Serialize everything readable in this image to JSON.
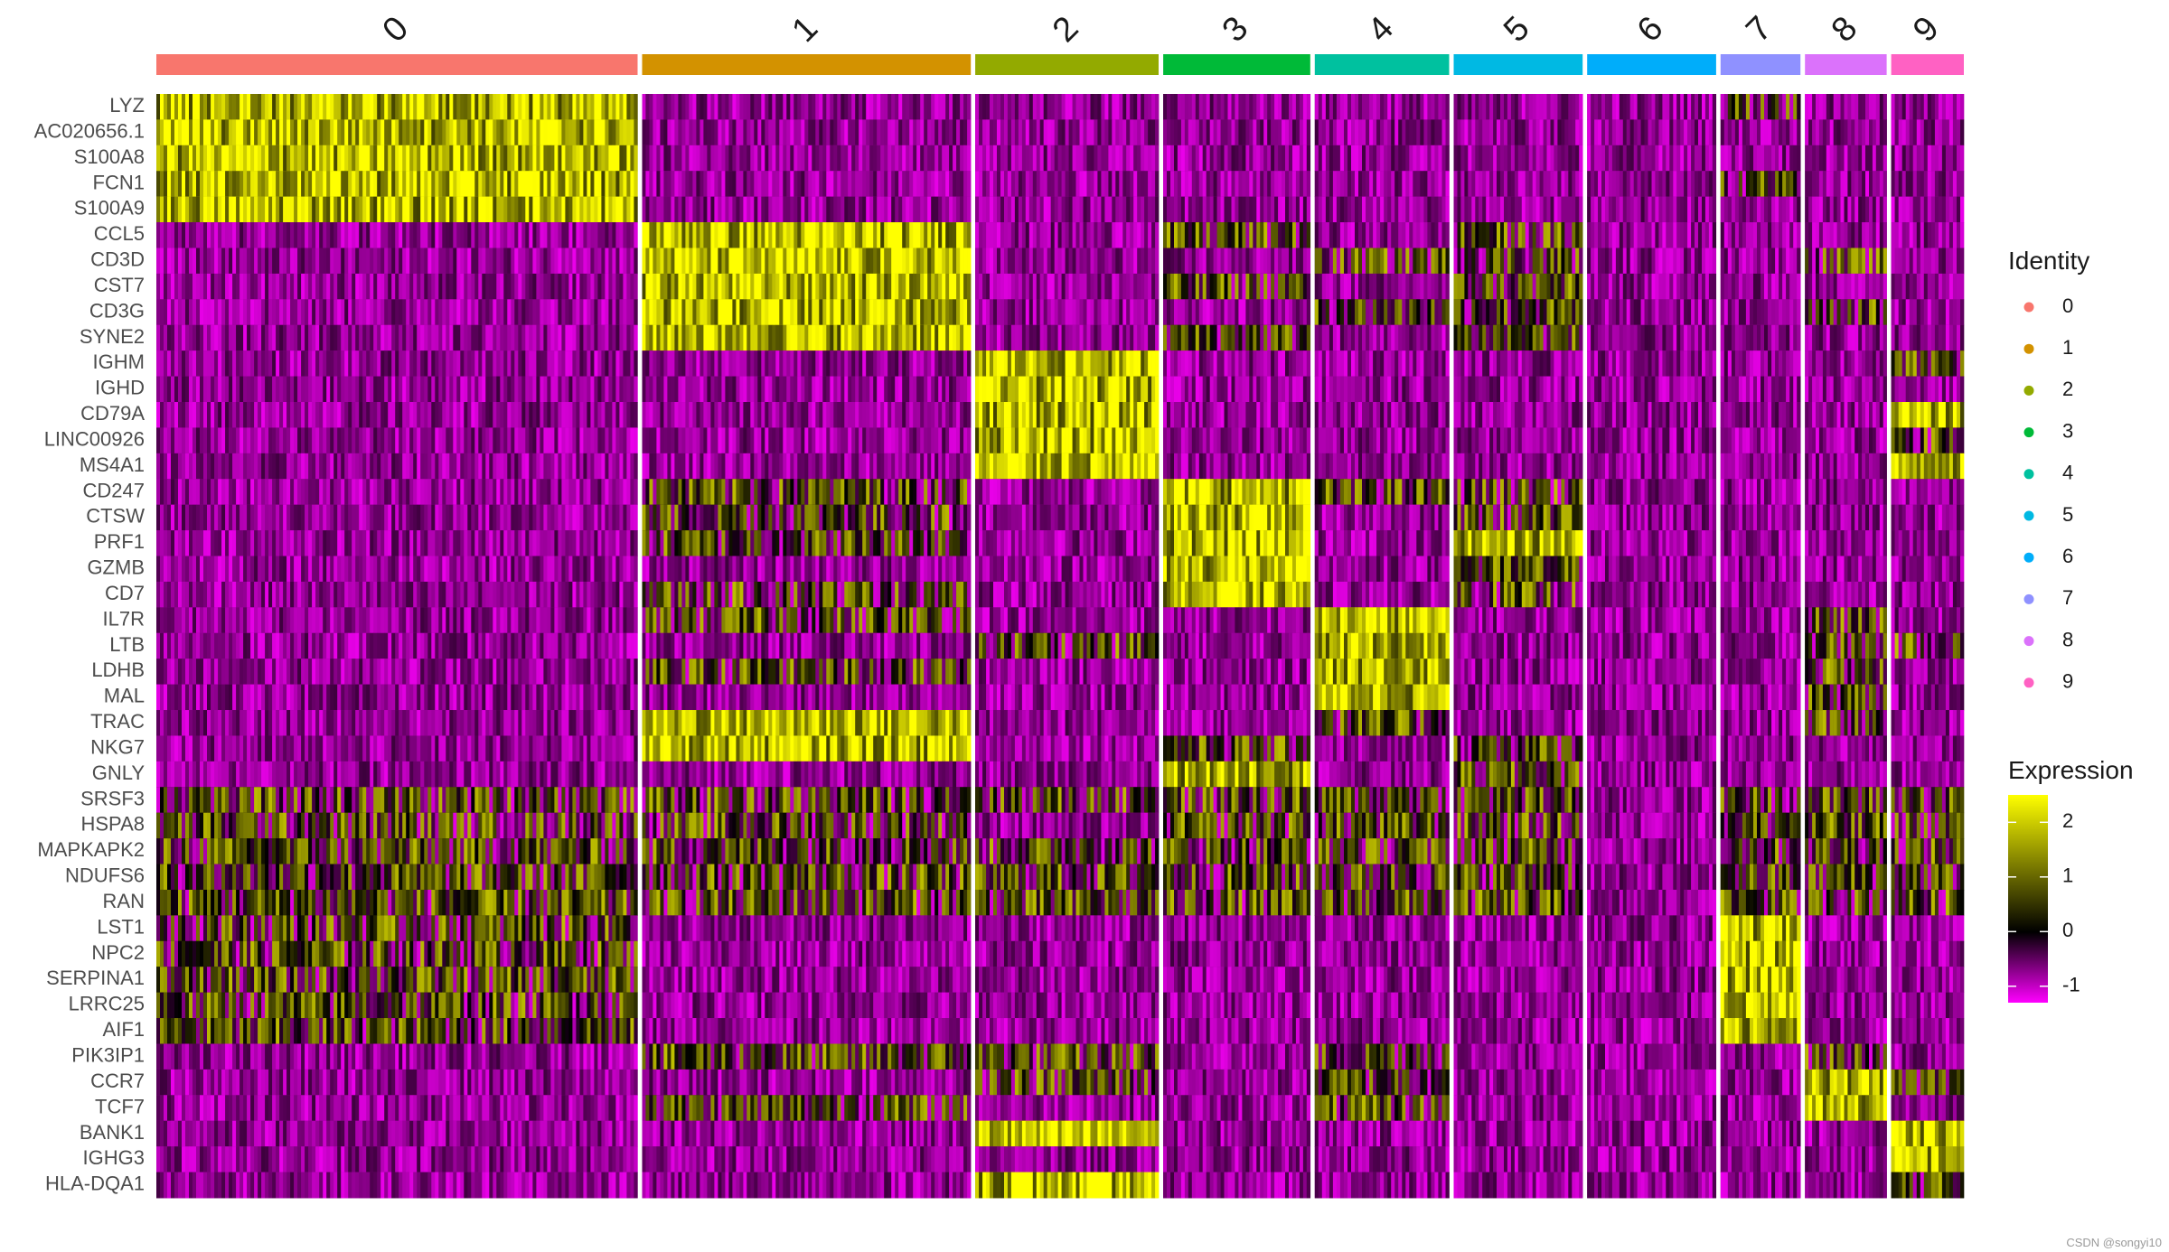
{
  "chart_data": {
    "type": "heatmap",
    "clusters": [
      {
        "label": "0",
        "cells": 530,
        "color": "#F8766D"
      },
      {
        "label": "1",
        "cells": 362,
        "color": "#D39200"
      },
      {
        "label": "2",
        "cells": 202,
        "color": "#93AA00"
      },
      {
        "label": "3",
        "cells": 162,
        "color": "#00BA38"
      },
      {
        "label": "4",
        "cells": 148,
        "color": "#00C19F"
      },
      {
        "label": "5",
        "cells": 142,
        "color": "#00B9E3"
      },
      {
        "label": "6",
        "cells": 142,
        "color": "#00ADFA"
      },
      {
        "label": "7",
        "cells": 88,
        "color": "#8F91FF"
      },
      {
        "label": "8",
        "cells": 90,
        "color": "#DB72FB"
      },
      {
        "label": "9",
        "cells": 80,
        "color": "#FF61C3"
      }
    ],
    "genes": [
      {
        "name": "LYZ",
        "high": [
          0
        ],
        "mid": [
          7
        ]
      },
      {
        "name": "AC020656.1",
        "high": [
          0
        ],
        "mid": []
      },
      {
        "name": "S100A8",
        "high": [
          0
        ],
        "mid": []
      },
      {
        "name": "FCN1",
        "high": [
          0
        ],
        "mid": [
          7
        ]
      },
      {
        "name": "S100A9",
        "high": [
          0
        ],
        "mid": []
      },
      {
        "name": "CCL5",
        "high": [
          1
        ],
        "mid": [
          3,
          5
        ]
      },
      {
        "name": "CD3D",
        "high": [
          1
        ],
        "mid": [
          4,
          5,
          8
        ]
      },
      {
        "name": "CST7",
        "high": [
          1
        ],
        "mid": [
          3,
          5
        ]
      },
      {
        "name": "CD3G",
        "high": [
          1
        ],
        "mid": [
          4,
          5,
          8
        ]
      },
      {
        "name": "SYNE2",
        "high": [
          1
        ],
        "mid": [
          3,
          5
        ]
      },
      {
        "name": "IGHM",
        "high": [
          2
        ],
        "mid": [
          9
        ]
      },
      {
        "name": "IGHD",
        "high": [
          2
        ],
        "mid": []
      },
      {
        "name": "CD79A",
        "high": [
          2,
          9
        ],
        "mid": []
      },
      {
        "name": "LINC00926",
        "high": [
          2
        ],
        "mid": [
          9
        ]
      },
      {
        "name": "MS4A1",
        "high": [
          2,
          9
        ],
        "mid": []
      },
      {
        "name": "CD247",
        "high": [
          3
        ],
        "mid": [
          1,
          5,
          4
        ]
      },
      {
        "name": "CTSW",
        "high": [
          3
        ],
        "mid": [
          1,
          5
        ]
      },
      {
        "name": "PRF1",
        "high": [
          3,
          5
        ],
        "mid": [
          1
        ]
      },
      {
        "name": "GZMB",
        "high": [
          3
        ],
        "mid": [
          5
        ]
      },
      {
        "name": "CD7",
        "high": [
          3
        ],
        "mid": [
          1,
          5
        ]
      },
      {
        "name": "IL7R",
        "high": [
          4
        ],
        "mid": [
          1,
          8
        ]
      },
      {
        "name": "LTB",
        "high": [
          4
        ],
        "mid": [
          2,
          8,
          9
        ]
      },
      {
        "name": "LDHB",
        "high": [
          4
        ],
        "mid": [
          1,
          8
        ]
      },
      {
        "name": "MAL",
        "high": [
          4
        ],
        "mid": [
          8
        ]
      },
      {
        "name": "TRAC",
        "high": [
          1
        ],
        "mid": [
          4,
          8
        ]
      },
      {
        "name": "NKG7",
        "high": [
          1
        ],
        "mid": [
          3,
          5
        ]
      },
      {
        "name": "GNLY",
        "high": [
          3
        ],
        "mid": [
          5
        ]
      },
      {
        "name": "SRSF3",
        "high": [],
        "mid": [
          0,
          1,
          2,
          3,
          4,
          5,
          7,
          8,
          9
        ]
      },
      {
        "name": "HSPA8",
        "high": [],
        "mid": [
          0,
          1,
          3,
          4,
          5,
          7,
          8,
          9
        ]
      },
      {
        "name": "MAPKAPK2",
        "high": [],
        "mid": [
          0,
          1,
          2,
          3,
          4,
          5,
          7,
          8,
          9
        ]
      },
      {
        "name": "NDUFS6",
        "high": [],
        "mid": [
          0,
          1,
          2,
          3,
          4,
          5,
          7,
          8,
          9
        ]
      },
      {
        "name": "RAN",
        "high": [],
        "mid": [
          0,
          1,
          2,
          3,
          4,
          5,
          7,
          8,
          9
        ]
      },
      {
        "name": "LST1",
        "high": [
          7
        ],
        "mid": [
          0
        ]
      },
      {
        "name": "NPC2",
        "high": [
          7
        ],
        "mid": [
          0
        ]
      },
      {
        "name": "SERPINA1",
        "high": [
          7
        ],
        "mid": [
          0
        ]
      },
      {
        "name": "LRRC25",
        "high": [
          7
        ],
        "mid": [
          0
        ]
      },
      {
        "name": "AIF1",
        "high": [
          7
        ],
        "mid": [
          0
        ]
      },
      {
        "name": "PIK3IP1",
        "high": [],
        "mid": [
          1,
          2,
          4,
          8
        ]
      },
      {
        "name": "CCR7",
        "high": [
          8
        ],
        "mid": [
          2,
          4,
          9
        ]
      },
      {
        "name": "TCF7",
        "high": [
          8
        ],
        "mid": [
          1,
          4
        ]
      },
      {
        "name": "BANK1",
        "high": [
          2,
          9
        ],
        "mid": []
      },
      {
        "name": "IGHG3",
        "high": [
          9
        ],
        "mid": []
      },
      {
        "name": "HLA-DQA1",
        "high": [
          2
        ],
        "mid": [
          9
        ]
      }
    ],
    "legend_identity": {
      "title": "Identity",
      "items": [
        "0",
        "1",
        "2",
        "3",
        "4",
        "5",
        "6",
        "7",
        "8",
        "9"
      ]
    },
    "legend_expression": {
      "title": "Expression",
      "ticks": [
        2,
        1,
        0,
        -1
      ],
      "range": [
        -1.3,
        2.5
      ],
      "colors": [
        "#FF00FF",
        "#000000",
        "#FFFF00"
      ]
    }
  },
  "watermark": "CSDN @songyi10"
}
